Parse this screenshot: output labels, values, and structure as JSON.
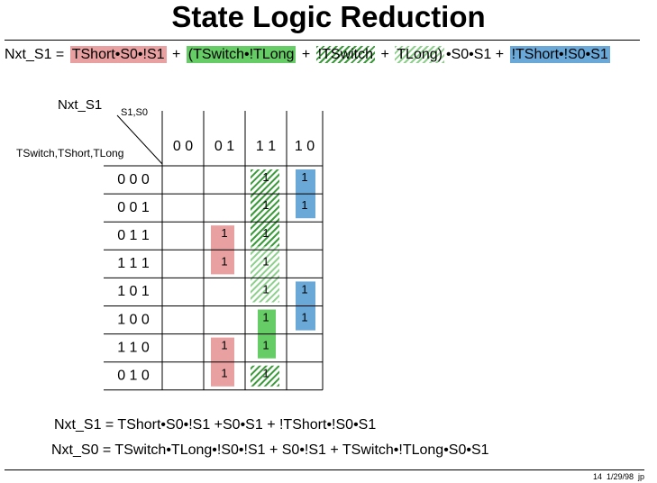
{
  "title": "State Logic Reduction",
  "equation": {
    "lhs": "Nxt_S1 =",
    "parts": [
      "TShort•S0•!S1",
      "+",
      "(TSwitch•!TLong",
      "+",
      "!TSwitch",
      "+",
      "TLong)",
      "•S0•S1 +",
      "!TShort•!S0•S1"
    ]
  },
  "kmap": {
    "output": "Nxt_S1",
    "col_vars": "S1,S0",
    "row_vars": "TSwitch,TShort,TLong",
    "columns": [
      "0 0",
      "0 1",
      "1 1",
      "1 0"
    ],
    "rows": [
      "0 0 0",
      "0 0 1",
      "0 1 1",
      "1 1 1",
      "1 0 1",
      "1 0 0",
      "1 1 0",
      "0 1 0"
    ],
    "cells": [
      [
        null,
        null,
        "1",
        "1"
      ],
      [
        null,
        null,
        "1",
        "1"
      ],
      [
        null,
        "1",
        "1",
        null
      ],
      [
        null,
        "1",
        "1",
        null
      ],
      [
        null,
        null,
        "1",
        "1"
      ],
      [
        null,
        null,
        "1",
        "1"
      ],
      [
        null,
        "1",
        "1",
        null
      ],
      [
        null,
        "1",
        "1",
        null
      ]
    ]
  },
  "results": [
    "Nxt_S1 = TShort•S0•!S1 +S0•S1 + !TShort•!S0•S1",
    "Nxt_S0 = TSwitch•TLong•!S0•!S1 + S0•!S1 + TSwitch•!TLong•S0•S1"
  ],
  "footer": "14  1/29/98  jp"
}
